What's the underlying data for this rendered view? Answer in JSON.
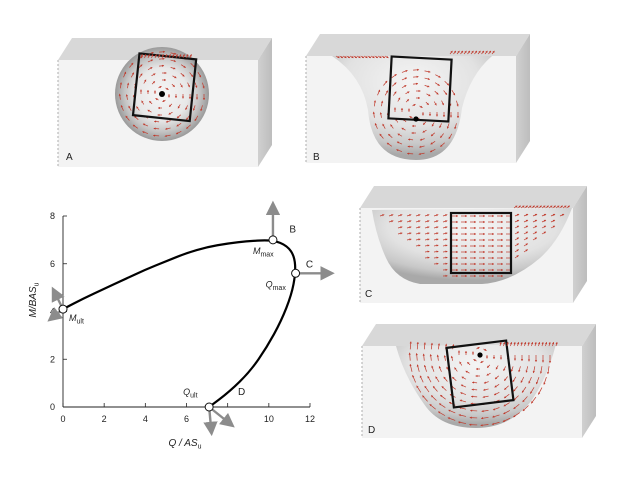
{
  "panels": [
    {
      "id": "A",
      "label": "A"
    },
    {
      "id": "B",
      "label": "B"
    },
    {
      "id": "C",
      "label": "C"
    },
    {
      "id": "D",
      "label": "D"
    }
  ],
  "chart_data": {
    "type": "line",
    "xlabel": "Q / AS",
    "xlabel_sub": "u",
    "ylabel": "M/BAS",
    "ylabel_sub": "u",
    "xlim": [
      0,
      12
    ],
    "ylim": [
      0,
      8
    ],
    "x_ticks": [
      "0",
      "2",
      "4",
      "6",
      "8",
      "10",
      "12"
    ],
    "y_ticks": [
      "0",
      "2",
      "4",
      "6",
      "8"
    ],
    "series": [
      {
        "points": [
          [
            0,
            4.1
          ],
          [
            1,
            4.55
          ],
          [
            2,
            4.95
          ],
          [
            3,
            5.35
          ],
          [
            4,
            5.75
          ],
          [
            5,
            6.1
          ],
          [
            6,
            6.45
          ],
          [
            7,
            6.7
          ],
          [
            8,
            6.85
          ],
          [
            9,
            6.95
          ],
          [
            10.2,
            7.0
          ],
          [
            10.9,
            6.75
          ],
          [
            11.25,
            6.3
          ],
          [
            11.3,
            5.6
          ],
          [
            11.1,
            4.7
          ],
          [
            10.6,
            3.6
          ],
          [
            9.9,
            2.5
          ],
          [
            9.1,
            1.5
          ],
          [
            8.1,
            0.65
          ],
          [
            7.1,
            0
          ]
        ]
      }
    ],
    "key_points": [
      {
        "name": "M",
        "sub": "ult",
        "x": 0,
        "y": 4.1
      },
      {
        "name": "M",
        "sub": "max",
        "x": 10.2,
        "y": 7.0
      },
      {
        "name": "Q",
        "sub": "max",
        "x": 11.3,
        "y": 5.6
      },
      {
        "name": "Q",
        "sub": "ult",
        "x": 7.1,
        "y": 0
      }
    ],
    "curve_letters": [
      {
        "label": "B",
        "x": 11.0,
        "y": 7.3
      },
      {
        "label": "C",
        "x": 11.8,
        "y": 5.85
      },
      {
        "label": "D",
        "x": 8.5,
        "y": 0.5
      }
    ],
    "grid": false
  }
}
